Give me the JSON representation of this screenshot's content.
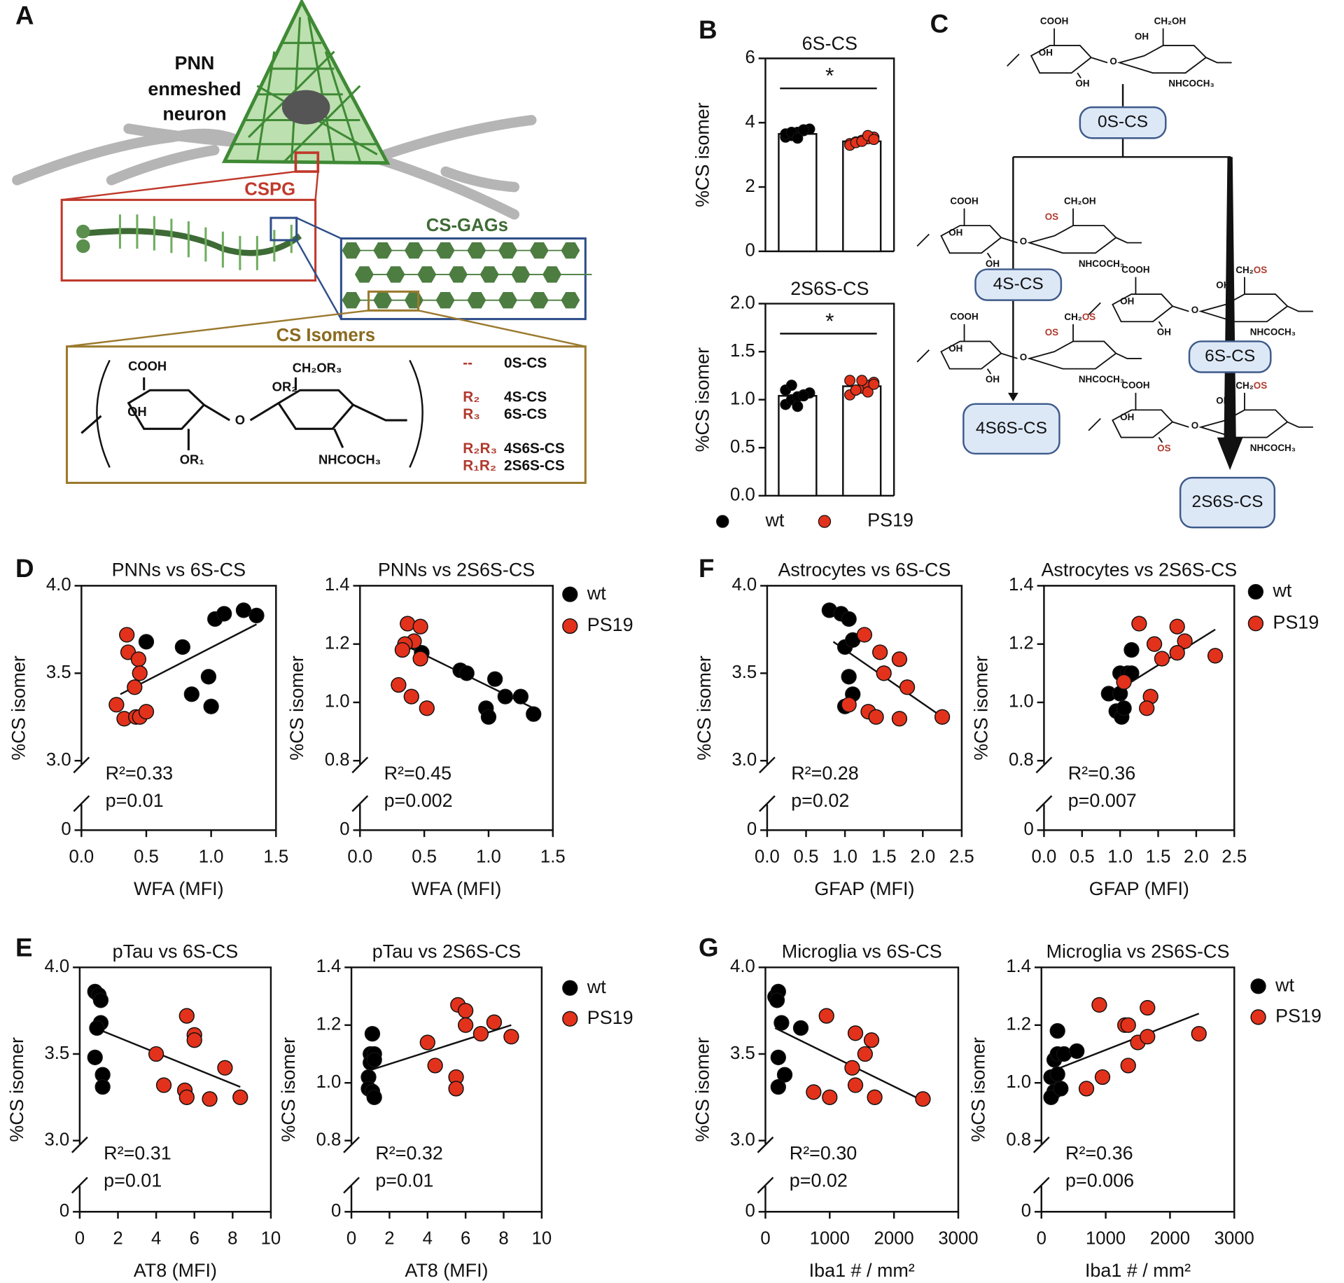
{
  "panel_labels": [
    "A",
    "B",
    "C",
    "D",
    "E",
    "F",
    "G"
  ],
  "diagram_a": {
    "neuron_label": [
      "PNN",
      "enmeshed",
      "neuron"
    ],
    "cspg": "CSPG",
    "cs_gags": "CS-GAGs",
    "cs_isomers": "CS Isomers",
    "structure": {
      "cooh": "COOH",
      "oh": "OH",
      "or1": "OR₁",
      "linker": "O",
      "ch2or3": "CH₂OR₃",
      "or2": "OR₂",
      "nhcoch3": "NHCOCH₃"
    },
    "isomer_table": [
      [
        "--",
        "0S-CS"
      ],
      [
        "R₂",
        "4S-CS"
      ],
      [
        "R₃",
        "6S-CS"
      ],
      [
        "R₂R₃",
        "4S6S-CS"
      ],
      [
        "R₁R₂",
        "2S6S-CS"
      ]
    ]
  },
  "diagram_c": {
    "structures": [
      {
        "labels": [
          "COOH",
          "OH",
          "OH",
          "O",
          "CH₂OH",
          "OH",
          "NHCOCH₃"
        ]
      },
      {
        "labels": [
          "COOH",
          "OH",
          "OH",
          "O",
          "CH₂OH",
          "OS",
          "NHCOCH₃"
        ]
      },
      {
        "labels": [
          "COOH",
          "OH",
          "OH",
          "O",
          "CH₂OS",
          "OS",
          "NHCOCH₃"
        ]
      },
      {
        "labels": [
          "COOH",
          "OH",
          "OH",
          "O",
          "CH₂OS",
          "OH",
          "NHCOCH₃"
        ]
      },
      {
        "labels": [
          "COOH",
          "OH",
          "OS",
          "O",
          "CH₂OS",
          "OH",
          "NHCOCH₃"
        ]
      }
    ],
    "boxes": [
      "0S-CS",
      "4S-CS",
      "4S6S-CS",
      "6S-CS",
      "2S6S-CS"
    ]
  },
  "chart_data": [
    {
      "type": "bar",
      "title": "6S-CS",
      "y_label": "%CS isomer",
      "ylim": [
        0,
        6
      ],
      "yticks": [
        0,
        2,
        4,
        6
      ],
      "annotation": "*",
      "series": [
        {
          "name": "wt",
          "color": "#000000",
          "values": [
            3.65
          ],
          "points": [
            3.55,
            3.6,
            3.7,
            3.75,
            3.8,
            3.65,
            3.7,
            3.52,
            3.78
          ]
        },
        {
          "name": "PS19",
          "color": "#e3321b",
          "values": [
            3.42
          ],
          "points": [
            3.35,
            3.4,
            3.45,
            3.5,
            3.55,
            3.3,
            3.38,
            3.42,
            3.6,
            3.48
          ]
        }
      ]
    },
    {
      "type": "bar",
      "title": "2S6S-CS",
      "y_label": "%CS isomer",
      "ylim": [
        0,
        2
      ],
      "yticks": [
        {
          "value": 0,
          "label": "0.0"
        },
        0.5,
        {
          "value": 1,
          "label": "1.0"
        },
        1.5,
        {
          "value": 2,
          "label": "2.0"
        }
      ],
      "annotation": "*",
      "legend": true,
      "series": [
        {
          "name": "wt",
          "color": "#000000",
          "values": [
            1.04
          ],
          "points": [
            0.95,
            1.0,
            1.03,
            1.05,
            1.07,
            1.1,
            1.15,
            0.93,
            1.04
          ]
        },
        {
          "name": "PS19",
          "color": "#e3321b",
          "values": [
            1.14
          ],
          "points": [
            1.05,
            1.1,
            1.12,
            1.15,
            1.18,
            1.2,
            1.1,
            1.2,
            1.08,
            1.16
          ]
        }
      ]
    },
    {
      "type": "scatter",
      "title": "PNNs vs 6S-CS",
      "x_label": "WFA (MFI)",
      "y_label": "%CS isomer",
      "xlim": [
        0,
        1.5
      ],
      "xticks": [
        {
          "value": 0,
          "label": "0.0"
        },
        0.5,
        {
          "value": 1,
          "label": "1.0"
        },
        1.5
      ],
      "ylim": [
        3,
        4
      ],
      "yticks": [
        0,
        {
          "value": 3,
          "label": "3.0"
        },
        3.5,
        {
          "value": 4,
          "label": "4.0"
        }
      ],
      "annotations": [
        "R²=0.33",
        "p=0.01"
      ],
      "fit": {
        "x": [
          0.3,
          1.35
        ],
        "y": [
          3.38,
          3.78
        ]
      },
      "series": [
        {
          "name": "wt",
          "color": "#000000",
          "x": [
            0.5,
            0.78,
            0.85,
            0.98,
            1.0,
            1.03,
            1.1,
            1.25,
            1.35
          ],
          "values": [
            3.68,
            3.65,
            3.38,
            3.48,
            3.31,
            3.81,
            3.84,
            3.86,
            3.83
          ]
        },
        {
          "name": "PS19",
          "color": "#e3321b",
          "x": [
            0.27,
            0.33,
            0.35,
            0.36,
            0.44,
            0.45,
            0.41,
            0.42,
            0.45,
            0.5
          ],
          "values": [
            3.32,
            3.24,
            3.72,
            3.62,
            3.58,
            3.5,
            3.42,
            3.25,
            3.25,
            3.28
          ]
        }
      ]
    },
    {
      "type": "scatter",
      "title": "PNNs vs 2S6S-CS",
      "x_label": "WFA (MFI)",
      "y_label": "%CS isomer",
      "xlim": [
        0,
        1.5
      ],
      "xticks": [
        {
          "value": 0,
          "label": "0.0"
        },
        0.5,
        {
          "value": 1,
          "label": "1.0"
        },
        1.5
      ],
      "ylim": [
        0.8,
        1.4
      ],
      "yticks": [
        0,
        0.8,
        {
          "value": 1,
          "label": "1.0"
        },
        1.2,
        1.4
      ],
      "annotations": [
        "R²=0.45",
        "p=0.002"
      ],
      "legend": true,
      "fit": {
        "x": [
          0.33,
          1.35
        ],
        "y": [
          1.2,
          0.98
        ]
      },
      "series": [
        {
          "name": "wt",
          "color": "#000000",
          "x": [
            0.48,
            0.78,
            0.83,
            0.98,
            1.0,
            1.05,
            1.13,
            1.25,
            1.35
          ],
          "values": [
            1.17,
            1.11,
            1.1,
            0.98,
            0.95,
            1.08,
            1.02,
            1.02,
            0.96
          ]
        },
        {
          "name": "PS19",
          "color": "#e3321b",
          "x": [
            0.37,
            0.42,
            0.35,
            0.33,
            0.47,
            0.47,
            0.3,
            0.4,
            0.52
          ],
          "values": [
            1.27,
            1.21,
            1.2,
            1.18,
            1.26,
            1.15,
            1.06,
            1.02,
            0.98
          ]
        }
      ]
    },
    {
      "type": "scatter",
      "title": "Astrocytes vs 6S-CS",
      "x_label": "GFAP (MFI)",
      "y_label": "%CS isomer",
      "xlim": [
        0,
        2.5
      ],
      "xticks": [
        {
          "value": 0,
          "label": "0.0"
        },
        0.5,
        {
          "value": 1,
          "label": "1.0"
        },
        1.5,
        {
          "value": 2,
          "label": "2.0"
        },
        2.5
      ],
      "ylim": [
        3,
        4
      ],
      "yticks": [
        0,
        {
          "value": 3,
          "label": "3.0"
        },
        3.5,
        {
          "value": 4,
          "label": "4.0"
        }
      ],
      "annotations": [
        "R²=0.28",
        "p=0.02"
      ],
      "fit": {
        "x": [
          0.85,
          2.25
        ],
        "y": [
          3.68,
          3.25
        ]
      },
      "series": [
        {
          "name": "wt",
          "color": "#000000",
          "x": [
            0.8,
            0.95,
            1.05,
            1.0,
            1.1,
            1.05,
            1.1,
            1.0
          ],
          "values": [
            3.86,
            3.84,
            3.81,
            3.65,
            3.69,
            3.48,
            3.38,
            3.31
          ]
        },
        {
          "name": "PS19",
          "color": "#e3321b",
          "x": [
            1.25,
            1.45,
            1.7,
            1.5,
            1.8,
            1.05,
            1.3,
            1.4,
            1.7,
            2.25
          ],
          "values": [
            3.72,
            3.62,
            3.58,
            3.5,
            3.42,
            3.32,
            3.28,
            3.25,
            3.24,
            3.25
          ]
        }
      ]
    },
    {
      "type": "scatter",
      "title": "Astrocytes vs 2S6S-CS",
      "x_label": "GFAP (MFI)",
      "y_label": "%CS isomer",
      "xlim": [
        0,
        2.5
      ],
      "xticks": [
        {
          "value": 0,
          "label": "0.0"
        },
        0.5,
        {
          "value": 1,
          "label": "1.0"
        },
        1.5,
        {
          "value": 2,
          "label": "2.0"
        },
        2.5
      ],
      "ylim": [
        0.8,
        1.4
      ],
      "yticks": [
        0,
        0.8,
        {
          "value": 1,
          "label": "1.0"
        },
        1.2,
        1.4
      ],
      "annotations": [
        "R²=0.36",
        "p=0.007"
      ],
      "legend": true,
      "fit": {
        "x": [
          0.9,
          2.25
        ],
        "y": [
          1.03,
          1.25
        ]
      },
      "series": [
        {
          "name": "wt",
          "color": "#000000",
          "x": [
            0.85,
            1.0,
            1.0,
            1.1,
            1.15,
            1.15,
            0.95,
            1.02,
            1.05
          ],
          "values": [
            1.03,
            1.03,
            1.1,
            1.1,
            1.18,
            1.1,
            0.97,
            0.95,
            0.98
          ]
        },
        {
          "name": "PS19",
          "color": "#e3321b",
          "x": [
            1.25,
            1.75,
            1.85,
            1.45,
            1.75,
            1.55,
            2.25,
            1.05,
            1.4,
            1.35
          ],
          "values": [
            1.27,
            1.26,
            1.21,
            1.2,
            1.17,
            1.15,
            1.16,
            1.07,
            1.02,
            0.98
          ]
        }
      ]
    },
    {
      "type": "scatter",
      "title": "pTau vs 6S-CS",
      "x_label": "AT8 (MFI)",
      "y_label": "%CS isomer",
      "xlim": [
        0,
        10
      ],
      "xticks": [
        0,
        2,
        4,
        6,
        8,
        10
      ],
      "ylim": [
        3,
        4
      ],
      "yticks": [
        0,
        {
          "value": 3,
          "label": "3.0"
        },
        3.5,
        {
          "value": 4,
          "label": "4.0"
        }
      ],
      "annotations": [
        "R²=0.31",
        "p=0.01"
      ],
      "fit": {
        "x": [
          0.8,
          8.4
        ],
        "y": [
          3.65,
          3.31
        ]
      },
      "series": [
        {
          "name": "wt",
          "color": "#000000",
          "x": [
            0.8,
            1.0,
            1.1,
            1.1,
            0.9,
            0.8,
            1.2,
            1.2
          ],
          "values": [
            3.86,
            3.84,
            3.81,
            3.68,
            3.65,
            3.48,
            3.38,
            3.31
          ]
        },
        {
          "name": "PS19",
          "color": "#e3321b",
          "x": [
            4.0,
            4.4,
            5.6,
            6.0,
            6.0,
            5.5,
            5.6,
            6.8,
            7.6,
            8.4
          ],
          "values": [
            3.5,
            3.32,
            3.72,
            3.61,
            3.58,
            3.29,
            3.25,
            3.24,
            3.42,
            3.25
          ]
        }
      ]
    },
    {
      "type": "scatter",
      "title": "pTau vs 2S6S-CS",
      "x_label": "AT8 (MFI)",
      "y_label": "%CS isomer",
      "xlim": [
        0,
        10
      ],
      "xticks": [
        0,
        2,
        4,
        6,
        8,
        10
      ],
      "ylim": [
        0.8,
        1.4
      ],
      "yticks": [
        0,
        0.8,
        {
          "value": 1,
          "label": "1.0"
        },
        1.2,
        1.4
      ],
      "annotations": [
        "R²=0.32",
        "p=0.01"
      ],
      "legend": true,
      "fit": {
        "x": [
          0.8,
          8.4
        ],
        "y": [
          1.04,
          1.2
        ]
      },
      "series": [
        {
          "name": "wt",
          "color": "#000000",
          "x": [
            0.9,
            1.0,
            1.1,
            1.2,
            1.0,
            0.9,
            1.1,
            1.2,
            1.2
          ],
          "values": [
            1.02,
            1.1,
            1.17,
            1.1,
            1.07,
            0.98,
            0.97,
            0.95,
            1.08
          ]
        },
        {
          "name": "PS19",
          "color": "#e3321b",
          "x": [
            4.0,
            4.4,
            5.6,
            6.0,
            6.0,
            5.5,
            5.5,
            6.8,
            7.5,
            8.4
          ],
          "values": [
            1.14,
            1.06,
            1.27,
            1.25,
            1.2,
            1.02,
            0.98,
            1.17,
            1.21,
            1.16
          ]
        }
      ]
    },
    {
      "type": "scatter",
      "title": "Microglia vs 6S-CS",
      "x_label": "Iba1 # / mm²",
      "y_label": "%CS isomer",
      "xlim": [
        0,
        3000
      ],
      "xticks": [
        0,
        1000,
        2000,
        3000
      ],
      "ylim": [
        3,
        4
      ],
      "yticks": [
        0,
        {
          "value": 3,
          "label": "3.0"
        },
        3.5,
        {
          "value": 4,
          "label": "4.0"
        }
      ],
      "annotations": [
        "R²=0.30",
        "p=0.02"
      ],
      "fit": {
        "x": [
          150,
          2450
        ],
        "y": [
          3.65,
          3.23
        ]
      },
      "series": [
        {
          "name": "wt",
          "color": "#000000",
          "x": [
            150,
            200,
            180,
            250,
            200,
            300,
            200,
            550
          ],
          "values": [
            3.83,
            3.86,
            3.81,
            3.68,
            3.48,
            3.38,
            3.31,
            3.65
          ]
        },
        {
          "name": "PS19",
          "color": "#e3321b",
          "x": [
            950,
            750,
            1000,
            1400,
            1650,
            1550,
            1350,
            1400,
            1700,
            2450
          ],
          "values": [
            3.72,
            3.28,
            3.25,
            3.62,
            3.58,
            3.5,
            3.42,
            3.32,
            3.25,
            3.24
          ]
        }
      ]
    },
    {
      "type": "scatter",
      "title": "Microglia vs 2S6S-CS",
      "x_label": "Iba1 # / mm²",
      "y_label": "%CS isomer",
      "xlim": [
        0,
        3000
      ],
      "xticks": [
        0,
        1000,
        2000,
        3000
      ],
      "ylim": [
        0.8,
        1.4
      ],
      "yticks": [
        0,
        0.8,
        {
          "value": 1,
          "label": "1.0"
        },
        1.2,
        1.4
      ],
      "annotations": [
        "R²=0.36",
        "p=0.006"
      ],
      "legend": true,
      "fit": {
        "x": [
          150,
          2450
        ],
        "y": [
          1.04,
          1.24
        ]
      },
      "series": [
        {
          "name": "wt",
          "color": "#000000",
          "x": [
            150,
            250,
            200,
            250,
            350,
            550,
            200,
            150,
            300,
            250
          ],
          "values": [
            1.02,
            1.18,
            1.08,
            1.1,
            1.1,
            1.11,
            0.97,
            0.95,
            0.98,
            1.03
          ]
        },
        {
          "name": "PS19",
          "color": "#e3321b",
          "x": [
            900,
            700,
            950,
            1300,
            1350,
            1650,
            1500,
            1650,
            1350,
            2450
          ],
          "values": [
            1.27,
            0.98,
            1.02,
            1.2,
            1.2,
            1.26,
            1.14,
            1.16,
            1.06,
            1.17
          ]
        }
      ]
    }
  ]
}
